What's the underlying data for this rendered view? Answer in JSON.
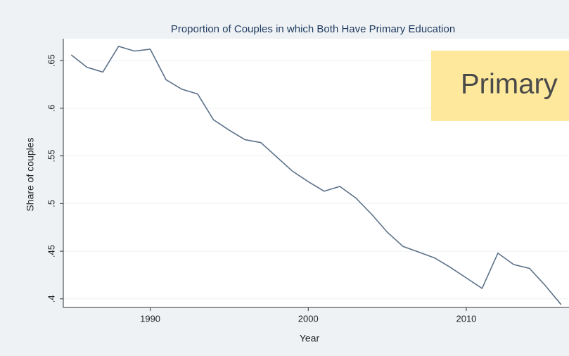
{
  "chart_data": {
    "type": "line",
    "title": "Proportion of Couples in which Both Have Primary Education",
    "x_label": "Year",
    "y_label": "Share of couples",
    "annotation": "Primary",
    "x": [
      1985,
      1986,
      1987,
      1988,
      1989,
      1990,
      1991,
      1992,
      1993,
      1994,
      1995,
      1996,
      1997,
      1998,
      1999,
      2000,
      2001,
      2002,
      2003,
      2004,
      2005,
      2006,
      2007,
      2008,
      2009,
      2010,
      2011,
      2012,
      2013,
      2014,
      2015,
      2016
    ],
    "series": [
      {
        "name": "Share of couples",
        "color": "#5b7189",
        "values": [
          0.656,
          0.643,
          0.638,
          0.665,
          0.66,
          0.662,
          0.63,
          0.62,
          0.615,
          0.588,
          0.577,
          0.567,
          0.564,
          0.549,
          0.534,
          0.523,
          0.513,
          0.518,
          0.506,
          0.489,
          0.47,
          0.455,
          0.449,
          0.443,
          0.433,
          0.422,
          0.411,
          0.448,
          0.436,
          0.432,
          0.414,
          0.394
        ]
      }
    ],
    "xlim": [
      1984.5,
      2016.5
    ],
    "xticks": [
      1990,
      2000,
      2010
    ],
    "ylim": [
      0.391,
      0.673
    ],
    "yticks": [
      {
        "value": 0.4,
        "label": ".4"
      },
      {
        "value": 0.45,
        "label": ".45"
      },
      {
        "value": 0.5,
        "label": ".5"
      },
      {
        "value": 0.55,
        "label": ".55"
      },
      {
        "value": 0.6,
        "label": ".6"
      },
      {
        "value": 0.65,
        "label": ".65"
      }
    ],
    "grid": true
  }
}
